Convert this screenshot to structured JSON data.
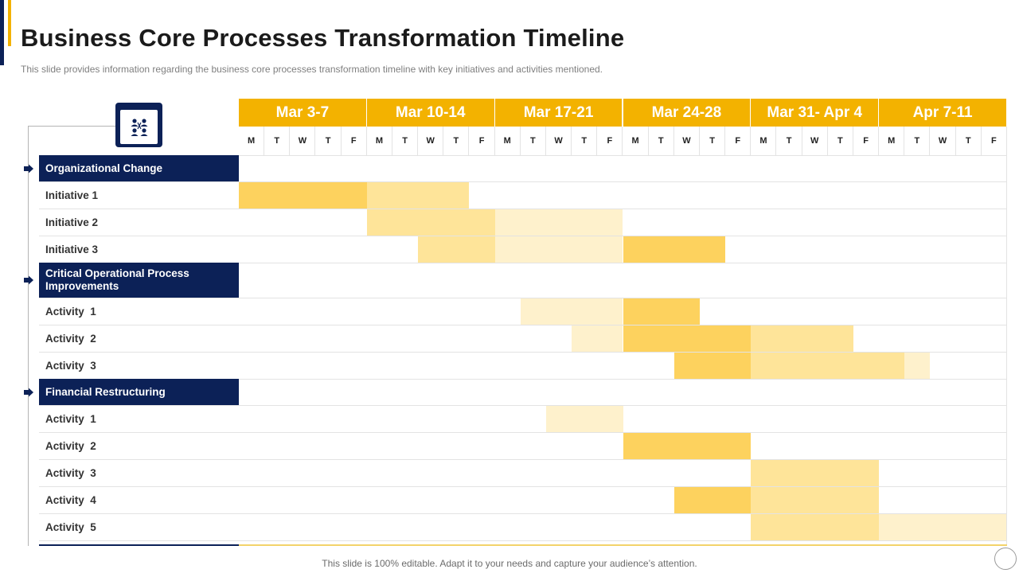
{
  "title": "Business Core Processes Transformation Timeline",
  "subtitle": "This slide provides information regarding the business core processes transformation timeline with key initiatives  and activities mentioned.",
  "footer": "This slide is 100% editable. Adapt it to your needs and capture your audience’s attention.",
  "colors": {
    "navy": "#0c2157",
    "gold": "#f3b200",
    "bar_strong": "#fdd25e",
    "bar_medium": "#fee499",
    "bar_light": "#fef1cc"
  },
  "icons": {
    "header_icon": "people-network-icon",
    "section_marker": "arrow-right-icon"
  },
  "weeks": [
    "Mar 3-7",
    "Mar 10-14",
    "Mar 17-21",
    "Mar 24-28",
    "Mar 31- Apr 4",
    "Apr 7-11"
  ],
  "days": [
    "M",
    "T",
    "W",
    "T",
    "F"
  ],
  "rows": [
    {
      "type": "section",
      "label": "Organizational Change",
      "bars": []
    },
    {
      "type": "item",
      "label": "Initiative 1",
      "bars": [
        {
          "start": 0,
          "days": 5,
          "shade": "strong"
        },
        {
          "start": 5,
          "days": 4,
          "shade": "medium"
        }
      ]
    },
    {
      "type": "item",
      "label": "Initiative 2",
      "bars": [
        {
          "start": 5,
          "days": 5,
          "shade": "medium"
        },
        {
          "start": 10,
          "days": 5,
          "shade": "light"
        }
      ]
    },
    {
      "type": "item",
      "label": "Initiative 3",
      "bars": [
        {
          "start": 7,
          "days": 3,
          "shade": "medium"
        },
        {
          "start": 10,
          "days": 5,
          "shade": "light"
        },
        {
          "start": 15,
          "days": 4,
          "shade": "strong"
        }
      ]
    },
    {
      "type": "section",
      "label": "Critical Operational Process Improvements",
      "bars": []
    },
    {
      "type": "item",
      "label": "Activity  1",
      "bars": [
        {
          "start": 11,
          "days": 4,
          "shade": "light"
        },
        {
          "start": 15,
          "days": 3,
          "shade": "strong"
        }
      ]
    },
    {
      "type": "item",
      "label": "Activity  2",
      "bars": [
        {
          "start": 13,
          "days": 2,
          "shade": "light"
        },
        {
          "start": 15,
          "days": 5,
          "shade": "strong"
        },
        {
          "start": 20,
          "days": 4,
          "shade": "medium"
        }
      ]
    },
    {
      "type": "item",
      "label": "Activity  3",
      "bars": [
        {
          "start": 17,
          "days": 3,
          "shade": "strong"
        },
        {
          "start": 20,
          "days": 6,
          "shade": "medium"
        },
        {
          "start": 26,
          "days": 1,
          "shade": "light"
        }
      ]
    },
    {
      "type": "section",
      "label": "Financial Restructuring",
      "bars": []
    },
    {
      "type": "item",
      "label": "Activity  1",
      "bars": [
        {
          "start": 12,
          "days": 3,
          "shade": "light"
        }
      ]
    },
    {
      "type": "item",
      "label": "Activity  2",
      "bars": [
        {
          "start": 15,
          "days": 5,
          "shade": "strong"
        }
      ]
    },
    {
      "type": "item",
      "label": "Activity  3",
      "bars": [
        {
          "start": 20,
          "days": 5,
          "shade": "medium"
        }
      ]
    },
    {
      "type": "item",
      "label": "Activity  4",
      "bars": [
        {
          "start": 17,
          "days": 3,
          "shade": "strong"
        },
        {
          "start": 20,
          "days": 5,
          "shade": "medium"
        }
      ]
    },
    {
      "type": "item",
      "label": "Activity  5",
      "bars": [
        {
          "start": 20,
          "days": 5,
          "shade": "medium"
        },
        {
          "start": 25,
          "days": 5,
          "shade": "light"
        }
      ]
    }
  ]
}
